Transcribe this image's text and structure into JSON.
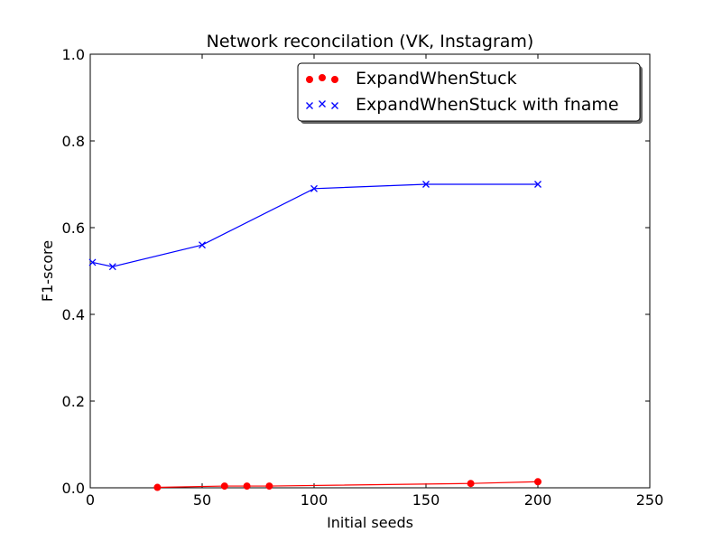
{
  "chart_data": {
    "type": "line",
    "title": "Network reconcilation (VK, Instagram)",
    "xlabel": "Initial seeds",
    "ylabel": "F1-score",
    "xlim": [
      0,
      250
    ],
    "ylim": [
      0.0,
      1.0
    ],
    "xticks": [
      "0",
      "50",
      "100",
      "150",
      "200",
      "250"
    ],
    "yticks": [
      "0.0",
      "0.2",
      "0.4",
      "0.6",
      "0.8",
      "1.0"
    ],
    "grid": false,
    "legend_position": "top-right",
    "series": [
      {
        "name": "ExpandWhenStuck",
        "color": "#ff0000",
        "marker": "circle",
        "x": [
          30,
          60,
          70,
          80,
          170,
          200
        ],
        "y": [
          0.001,
          0.004,
          0.004,
          0.004,
          0.01,
          0.014
        ]
      },
      {
        "name": "ExpandWhenStuck with fname",
        "color": "#0000ff",
        "marker": "x",
        "x": [
          1,
          10,
          50,
          100,
          150,
          200
        ],
        "y": [
          0.52,
          0.51,
          0.56,
          0.69,
          0.7,
          0.7
        ]
      }
    ]
  }
}
